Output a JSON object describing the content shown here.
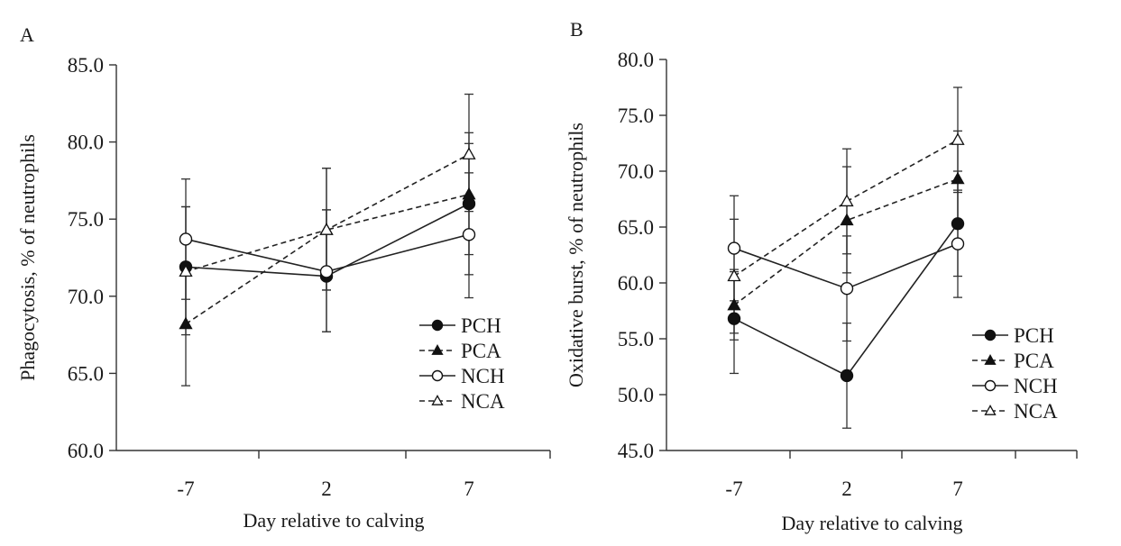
{
  "chart_data": [
    {
      "type": "line",
      "panel_label": "A",
      "title": "",
      "xlabel": "Day relative to calving",
      "ylabel": "Phagocytosis, % of neutrophils",
      "categories": [
        "-7",
        "2",
        "7"
      ],
      "ylim": [
        60.0,
        85.0
      ],
      "yticks": [
        "60.0",
        "65.0",
        "70.0",
        "75.0",
        "80.0",
        "85.0"
      ],
      "grid": false,
      "legend_position": "bottom-right",
      "series": [
        {
          "name": "PCH",
          "marker": "filled-circle",
          "line": "solid",
          "values": [
            71.9,
            71.3,
            76.0
          ],
          "error_upper": [
            75.8,
            75.6,
            80.6
          ],
          "error_lower": [
            68.0,
            67.7,
            71.4
          ]
        },
        {
          "name": "PCA",
          "marker": "filled-triangle",
          "line": "dashed",
          "values": [
            68.2,
            74.3,
            76.6
          ],
          "error_upper": [
            71.9,
            78.3,
            79.9
          ],
          "error_lower": [
            64.2,
            70.4,
            72.7
          ]
        },
        {
          "name": "NCH",
          "marker": "open-circle",
          "line": "solid",
          "values": [
            73.7,
            71.6,
            74.0
          ],
          "error_upper": [
            77.6,
            75.6,
            78.0
          ],
          "error_lower": [
            69.8,
            67.7,
            69.9
          ]
        },
        {
          "name": "NCA",
          "marker": "open-triangle",
          "line": "dashed",
          "values": [
            71.6,
            74.3,
            79.2
          ],
          "error_upper": [
            75.8,
            78.3,
            83.1
          ],
          "error_lower": [
            67.5,
            70.4,
            75.5
          ]
        }
      ]
    },
    {
      "type": "line",
      "panel_label": "B",
      "title": "",
      "xlabel": "Day relative to calving",
      "ylabel": "Oxidative burst, % of neutrophils",
      "categories": [
        "-7",
        "2",
        "7"
      ],
      "ylim": [
        45.0,
        80.0
      ],
      "yticks": [
        "45.0",
        "50.0",
        "55.0",
        "60.0",
        "65.0",
        "70.0",
        "75.0",
        "80.0"
      ],
      "grid": false,
      "legend_position": "bottom-right",
      "series": [
        {
          "name": "PCH",
          "marker": "filled-circle",
          "line": "solid",
          "values": [
            56.8,
            51.7,
            65.3
          ],
          "error_upper": [
            61.0,
            56.4,
            70.0
          ],
          "error_lower": [
            51.9,
            47.0,
            60.6
          ]
        },
        {
          "name": "PCA",
          "marker": "filled-triangle",
          "line": "dashed",
          "values": [
            58.0,
            65.6,
            69.3
          ],
          "error_upper": [
            61.2,
            70.4,
            73.6
          ],
          "error_lower": [
            54.9,
            60.9,
            65.1
          ]
        },
        {
          "name": "NCH",
          "marker": "open-circle",
          "line": "solid",
          "values": [
            63.1,
            59.5,
            63.5
          ],
          "error_upper": [
            67.8,
            64.2,
            68.3
          ],
          "error_lower": [
            58.4,
            54.8,
            58.7
          ]
        },
        {
          "name": "NCA",
          "marker": "open-triangle",
          "line": "dashed",
          "values": [
            60.6,
            67.3,
            72.8
          ],
          "error_upper": [
            65.7,
            72.0,
            77.5
          ],
          "error_lower": [
            55.5,
            62.6,
            68.1
          ]
        }
      ]
    }
  ]
}
